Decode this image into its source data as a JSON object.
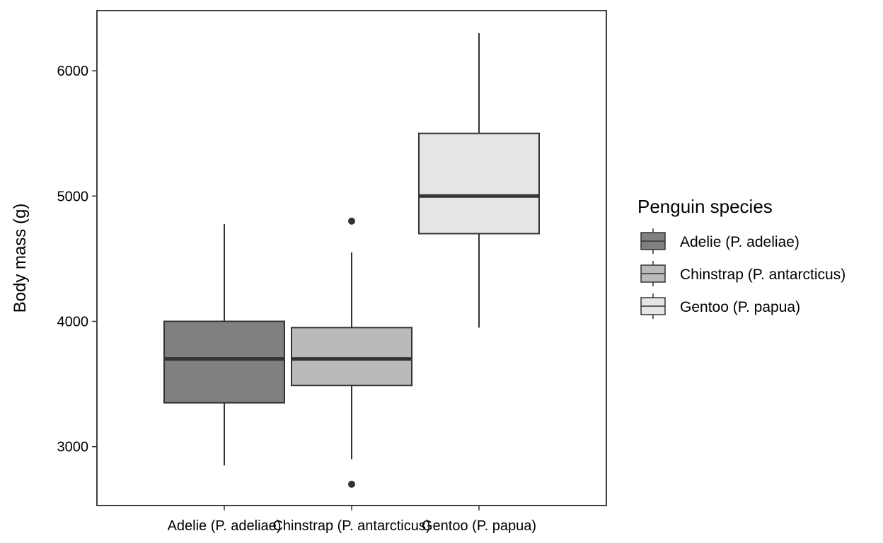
{
  "chart_data": {
    "type": "boxplot",
    "title": "",
    "xlabel": "",
    "ylabel": "Body mass (g)",
    "ylim": [
      2530,
      6480
    ],
    "yticks": [
      3000,
      4000,
      5000,
      6000
    ],
    "grid": false,
    "legend_position": "right",
    "legend_title": "Penguin species",
    "categories": [
      "Adelie (P. adeliae)",
      "Chinstrap (P. antarcticus)",
      "Gentoo (P. papua)"
    ],
    "series": [
      {
        "name": "Adelie (P. adeliae)",
        "whisker_low": 2850,
        "q1": 3350,
        "median": 3700,
        "q3": 4000,
        "whisker_high": 4775,
        "outliers": [],
        "color": "#808080"
      },
      {
        "name": "Chinstrap (P. antarcticus)",
        "whisker_low": 2900,
        "q1": 3488,
        "median": 3700,
        "q3": 3950,
        "whisker_high": 4550,
        "outliers": [
          2700,
          4800
        ],
        "color": "#bababa"
      },
      {
        "name": "Gentoo (P. papua)",
        "whisker_low": 3950,
        "q1": 4700,
        "median": 5000,
        "q3": 5500,
        "whisker_high": 6300,
        "outliers": [],
        "color": "#e5e5e5"
      }
    ],
    "stroke_color": "#333333"
  }
}
